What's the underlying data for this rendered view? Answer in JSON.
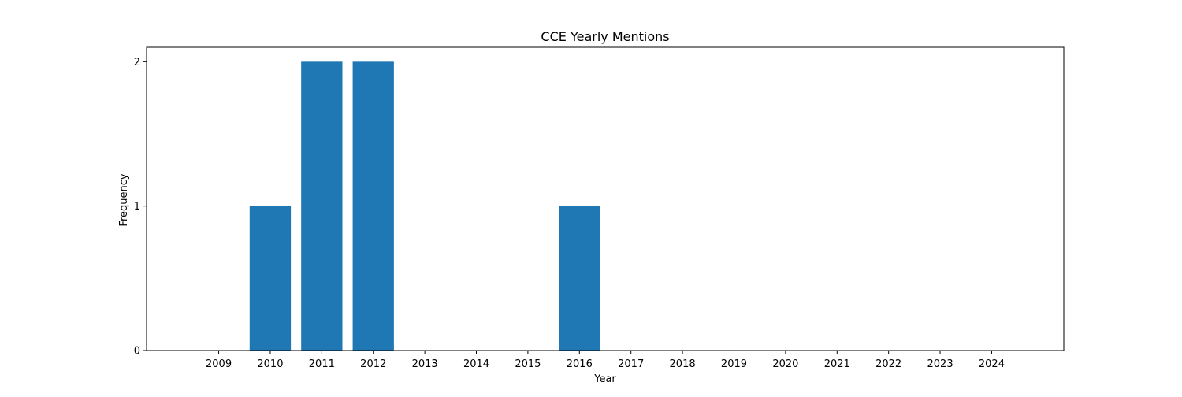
{
  "chart_data": {
    "type": "bar",
    "title": "CCE Yearly Mentions",
    "xlabel": "Year",
    "ylabel": "Frequency",
    "categories": [
      "2009",
      "2010",
      "2011",
      "2012",
      "2013",
      "2014",
      "2015",
      "2016",
      "2017",
      "2018",
      "2019",
      "2020",
      "2021",
      "2022",
      "2023",
      "2024"
    ],
    "values": [
      0,
      1,
      2,
      2,
      0,
      0,
      0,
      1,
      0,
      0,
      0,
      0,
      0,
      0,
      0,
      0
    ],
    "y_ticks": [
      0,
      1,
      2
    ],
    "ylim": [
      0,
      2.1
    ],
    "grid": false,
    "legend": "none",
    "bar_color": "#1f77b4"
  }
}
